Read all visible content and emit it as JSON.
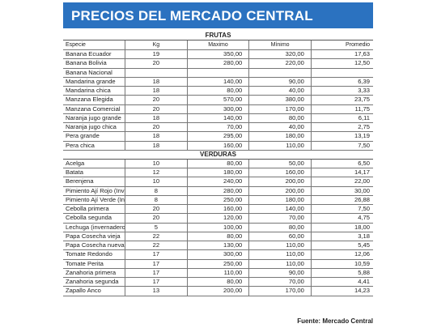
{
  "title": "PRECIOS DEL MERCADO CENTRAL",
  "columns": {
    "especie": "Especie",
    "kg": "Kg",
    "maximo": "Maximo",
    "minimo": "Mínimo",
    "promedio": "Promedio"
  },
  "frutas": {
    "label": "FRUTAS",
    "rows": [
      {
        "especie": "Banana Ecuador",
        "kg": "19",
        "maximo": "350,00",
        "minimo": "320,00",
        "promedio": "17,63"
      },
      {
        "especie": "Banana Bolivia",
        "kg": "20",
        "maximo": "280,00",
        "minimo": "220,00",
        "promedio": "12,50"
      },
      {
        "especie": "Banana Nacional",
        "kg": "",
        "maximo": "",
        "minimo": "",
        "promedio": ""
      },
      {
        "especie": "Mandarina grande",
        "kg": "18",
        "maximo": "140,00",
        "minimo": "90,00",
        "promedio": "6,39"
      },
      {
        "especie": "Mandarina chica",
        "kg": "18",
        "maximo": "80,00",
        "minimo": "40,00",
        "promedio": "3,33"
      },
      {
        "especie": "Manzana Elegida",
        "kg": "20",
        "maximo": "570,00",
        "minimo": "380,00",
        "promedio": "23,75"
      },
      {
        "especie": "Manzana Comercial",
        "kg": "20",
        "maximo": "300,00",
        "minimo": "170,00",
        "promedio": "11,75"
      },
      {
        "especie": "Naranja jugo grande",
        "kg": "18",
        "maximo": "140,00",
        "minimo": "80,00",
        "promedio": "6,11"
      },
      {
        "especie": "Naranja jugo chica",
        "kg": "20",
        "maximo": "70,00",
        "minimo": "40,00",
        "promedio": "2,75"
      },
      {
        "especie": "Pera grande",
        "kg": "18",
        "maximo": "295,00",
        "minimo": "180,00",
        "promedio": "13,19"
      },
      {
        "especie": "Pera chica",
        "kg": "18",
        "maximo": "160,00",
        "minimo": "110,00",
        "promedio": "7,50"
      }
    ]
  },
  "verduras": {
    "label": "VERDURAS",
    "rows": [
      {
        "especie": "Acelga",
        "kg": "10",
        "maximo": "80,00",
        "minimo": "50,00",
        "promedio": "6,50"
      },
      {
        "especie": "Batata",
        "kg": "12",
        "maximo": "180,00",
        "minimo": "160,00",
        "promedio": "14,17"
      },
      {
        "especie": "Berenjena",
        "kg": "10",
        "maximo": "240,00",
        "minimo": "200,00",
        "promedio": "22,00"
      },
      {
        "especie": "Pimiento Ají Rojo (Inver)",
        "kg": "8",
        "maximo": "280,00",
        "minimo": "200,00",
        "promedio": "30,00"
      },
      {
        "especie": "Pimiento Ají Verde (Inver)",
        "kg": "8",
        "maximo": "250,00",
        "minimo": "180,00",
        "promedio": "26,88"
      },
      {
        "especie": "Cebolla primera",
        "kg": "20",
        "maximo": "160,00",
        "minimo": "140,00",
        "promedio": "7,50"
      },
      {
        "especie": "Cebolla segunda",
        "kg": "20",
        "maximo": "120,00",
        "minimo": "70,00",
        "promedio": "4,75"
      },
      {
        "especie": "Lechuga (invernadero)",
        "kg": "5",
        "maximo": "100,00",
        "minimo": "80,00",
        "promedio": "18,00"
      },
      {
        "especie": "Papa Cosecha vieja",
        "kg": "22",
        "maximo": "80,00",
        "minimo": "60,00",
        "promedio": "3,18"
      },
      {
        "especie": "Papa Cosecha nueva",
        "kg": "22",
        "maximo": "130,00",
        "minimo": "110,00",
        "promedio": "5,45"
      },
      {
        "especie": "Tomate Redondo",
        "kg": "17",
        "maximo": "300,00",
        "minimo": "110,00",
        "promedio": "12,06"
      },
      {
        "especie": "Tomate Perita",
        "kg": "17",
        "maximo": "250,00",
        "minimo": "110,00",
        "promedio": "10,59"
      },
      {
        "especie": "Zanahoria primera",
        "kg": "17",
        "maximo": "110,00",
        "minimo": "90,00",
        "promedio": "5,88"
      },
      {
        "especie": "Zanahoria segunda",
        "kg": "17",
        "maximo": "80,00",
        "minimo": "70,00",
        "promedio": "4,41"
      },
      {
        "especie": "Zapallo Anco",
        "kg": "13",
        "maximo": "200,00",
        "minimo": "170,00",
        "promedio": "14,23"
      }
    ]
  },
  "source": "Fuente: Mercado Central",
  "colors": {
    "header_bg": "#2b72c0",
    "header_text": "#ffffff"
  }
}
